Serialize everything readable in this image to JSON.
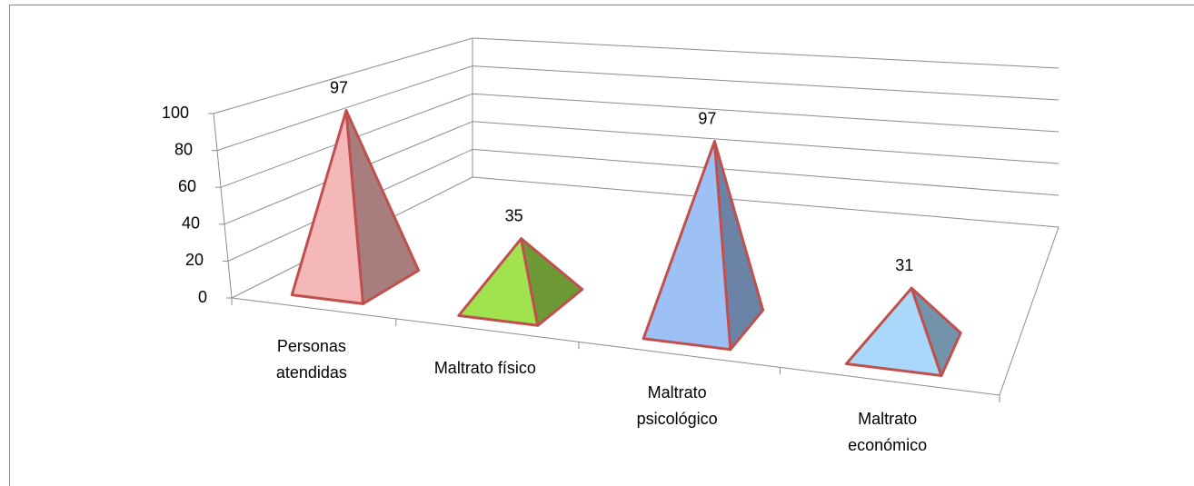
{
  "chart_data": {
    "type": "pyramid",
    "categories": [
      "Personas\natendidas",
      "Maltrato físico",
      "Maltrato\npsicológico",
      "Maltrato\neconómico"
    ],
    "values": [
      97,
      35,
      97,
      31
    ],
    "colors": [
      "#f5b8b8",
      "#a1e24f",
      "#9dc1f5",
      "#a9d8fb"
    ],
    "edge_color": "#c0504d",
    "ylim": [
      0,
      100
    ],
    "yticks": [
      0,
      20,
      40,
      60,
      80,
      100
    ],
    "grid": true
  }
}
